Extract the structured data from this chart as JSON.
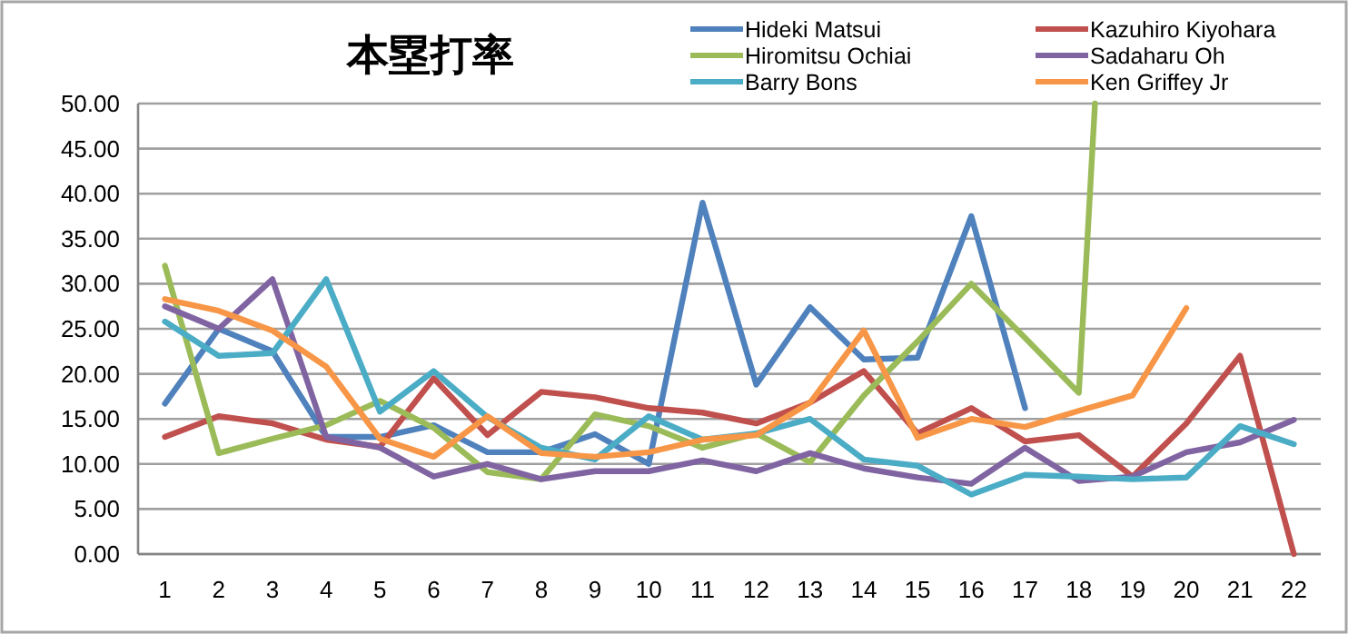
{
  "chart_data": {
    "type": "line",
    "title": "本塁打率",
    "x": [
      1,
      2,
      3,
      4,
      5,
      6,
      7,
      8,
      9,
      10,
      11,
      12,
      13,
      14,
      15,
      16,
      17,
      18,
      19,
      20,
      21,
      22
    ],
    "xlim": [
      0.5,
      22.5
    ],
    "xticks": [
      1,
      2,
      3,
      4,
      5,
      6,
      7,
      8,
      9,
      10,
      11,
      12,
      13,
      14,
      15,
      16,
      17,
      18,
      19,
      20,
      21,
      22
    ],
    "ylim": [
      0,
      50
    ],
    "yticks": [
      {
        "value": 0,
        "label": "0.00"
      },
      {
        "value": 5,
        "label": "5.00"
      },
      {
        "value": 10,
        "label": "10.00"
      },
      {
        "value": 15,
        "label": "15.00"
      },
      {
        "value": 20,
        "label": "20.00"
      },
      {
        "value": 25,
        "label": "25.00"
      },
      {
        "value": 30,
        "label": "30.00"
      },
      {
        "value": 35,
        "label": "35.00"
      },
      {
        "value": 40,
        "label": "40.00"
      },
      {
        "value": 45,
        "label": "45.00"
      },
      {
        "value": 50,
        "label": "50.00"
      }
    ],
    "grid": "y",
    "legend": "top right",
    "marker": "none",
    "line_style": "solid",
    "series": [
      {
        "name": "Hideki Matsui",
        "color": "#4f81bd",
        "values": [
          16.7,
          25,
          22.5,
          13,
          13,
          14.3,
          11.3,
          11.3,
          13.3,
          10,
          39,
          18.8,
          27.4,
          21.6,
          21.8,
          37.5,
          16.2,
          null,
          null,
          null,
          null,
          null
        ]
      },
      {
        "name": "Kazuhiro Kiyohara",
        "color": "#c0504d",
        "values": [
          13,
          15.3,
          14.5,
          12.7,
          11.9,
          19.5,
          13.2,
          18,
          17.4,
          16.2,
          15.7,
          14.5,
          16.8,
          20.3,
          13.4,
          16.2,
          12.5,
          13.2,
          8.6,
          14.5,
          22,
          0
        ]
      },
      {
        "name": "Hiromitsu Ochiai",
        "color": "#9bbb59",
        "x": [
          1,
          2,
          3,
          4,
          5,
          6,
          7,
          8,
          9,
          10,
          11,
          12,
          13,
          14,
          15,
          16,
          17,
          18,
          18.3
        ],
        "values": [
          32,
          11.2,
          12.8,
          14.3,
          17,
          14,
          9.1,
          8.3,
          15.5,
          14.2,
          11.8,
          13.4,
          10.2,
          17.6,
          23.6,
          30,
          24,
          17.9,
          50
        ]
      },
      {
        "name": "Sadaharu Oh",
        "color": "#8064a2",
        "values": [
          27.5,
          25,
          30.5,
          13,
          11.8,
          8.6,
          10,
          8.3,
          9.2,
          9.2,
          10.4,
          9.2,
          11.2,
          9.5,
          8.5,
          7.8,
          11.8,
          8.1,
          8.6,
          11.3,
          12.4,
          14.9
        ]
      },
      {
        "name": "Barry Bons",
        "color": "#4bacc6",
        "values": [
          25.8,
          22,
          22.3,
          30.5,
          15.8,
          20.3,
          15.2,
          11.8,
          10.5,
          15.3,
          12.7,
          13.4,
          15,
          10.5,
          9.8,
          6.6,
          8.8,
          8.6,
          8.3,
          8.5,
          14.2,
          12.2
        ]
      },
      {
        "name": "Ken Griffey Jr",
        "color": "#f79646",
        "values": [
          28.3,
          27,
          24.8,
          20.8,
          12.8,
          10.8,
          15.3,
          11.2,
          10.8,
          11.3,
          12.7,
          13.2,
          16.8,
          24.8,
          12.9,
          15,
          14.1,
          15.9,
          17.6,
          27.3,
          null,
          null
        ]
      }
    ]
  }
}
